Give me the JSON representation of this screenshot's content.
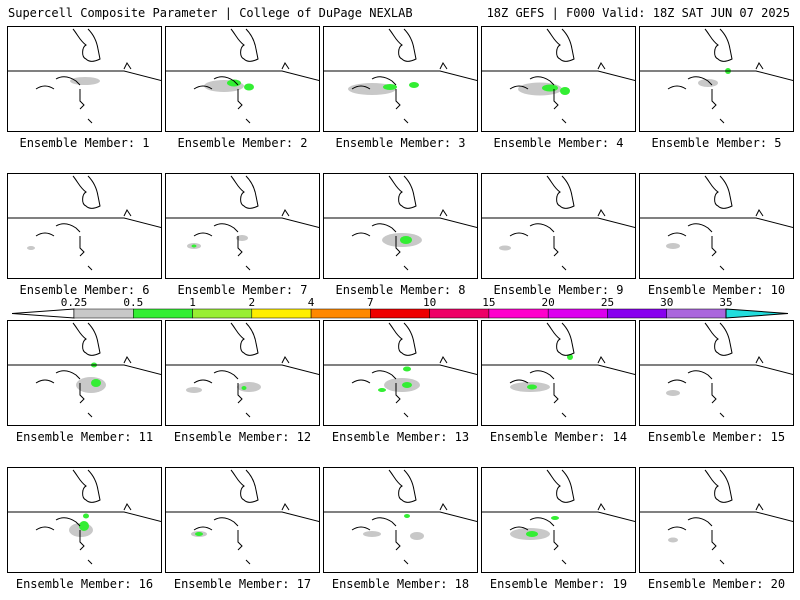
{
  "header": {
    "left": "Supercell Composite Parameter | College of DuPage NEXLAB",
    "right": "18Z GEFS | F000 Valid: 18Z SAT JUN 07 2025"
  },
  "members": [
    {
      "label": "Ensemble Member: 1"
    },
    {
      "label": "Ensemble Member: 2"
    },
    {
      "label": "Ensemble Member: 3"
    },
    {
      "label": "Ensemble Member: 4"
    },
    {
      "label": "Ensemble Member: 5"
    },
    {
      "label": "Ensemble Member: 6"
    },
    {
      "label": "Ensemble Member: 7"
    },
    {
      "label": "Ensemble Member: 8"
    },
    {
      "label": "Ensemble Member: 9"
    },
    {
      "label": "Ensemble Member: 10"
    },
    {
      "label": "Ensemble Member: 11"
    },
    {
      "label": "Ensemble Member: 12"
    },
    {
      "label": "Ensemble Member: 13"
    },
    {
      "label": "Ensemble Member: 14"
    },
    {
      "label": "Ensemble Member: 15"
    },
    {
      "label": "Ensemble Member: 16"
    },
    {
      "label": "Ensemble Member: 17"
    },
    {
      "label": "Ensemble Member: 18"
    },
    {
      "label": "Ensemble Member: 19"
    },
    {
      "label": "Ensemble Member: 20"
    }
  ],
  "colorbar": {
    "ticks": [
      "0.25",
      "0.5",
      "1",
      "2",
      "4",
      "7",
      "10",
      "15",
      "20",
      "25",
      "30",
      "35"
    ],
    "colors": [
      "#ffffff",
      "#c8c8c8",
      "#33ee33",
      "#99ee33",
      "#ffee00",
      "#ff8800",
      "#ee0000",
      "#ee0066",
      "#ff00cc",
      "#dd00ee",
      "#8800ee",
      "#aa66dd",
      "#22dddd"
    ]
  },
  "colors": {
    "gray": "#c8c8c8",
    "green": "#33ee33"
  }
}
